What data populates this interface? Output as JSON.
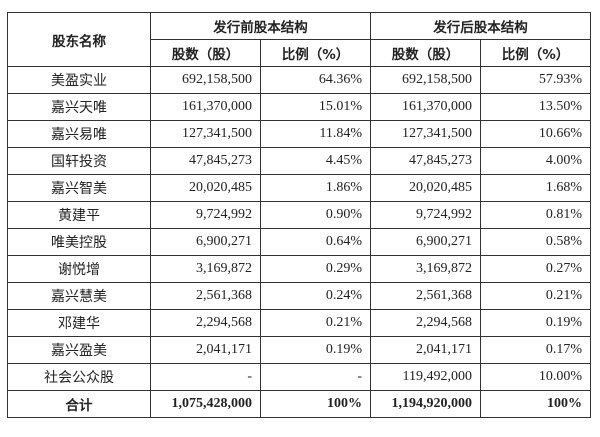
{
  "table": {
    "headers": {
      "shareholder": "股东名称",
      "before_group": "发行前股本结构",
      "after_group": "发行后股本结构",
      "shares": "股数（股）",
      "ratio": "比例（%）"
    },
    "rows": [
      {
        "name": "美盈实业",
        "before_shares": "692,158,500",
        "before_ratio": "64.36%",
        "after_shares": "692,158,500",
        "after_ratio": "57.93%"
      },
      {
        "name": "嘉兴天唯",
        "before_shares": "161,370,000",
        "before_ratio": "15.01%",
        "after_shares": "161,370,000",
        "after_ratio": "13.50%"
      },
      {
        "name": "嘉兴易唯",
        "before_shares": "127,341,500",
        "before_ratio": "11.84%",
        "after_shares": "127,341,500",
        "after_ratio": "10.66%"
      },
      {
        "name": "国轩投资",
        "before_shares": "47,845,273",
        "before_ratio": "4.45%",
        "after_shares": "47,845,273",
        "after_ratio": "4.00%"
      },
      {
        "name": "嘉兴智美",
        "before_shares": "20,020,485",
        "before_ratio": "1.86%",
        "after_shares": "20,020,485",
        "after_ratio": "1.68%"
      },
      {
        "name": "黄建平",
        "before_shares": "9,724,992",
        "before_ratio": "0.90%",
        "after_shares": "9,724,992",
        "after_ratio": "0.81%"
      },
      {
        "name": "唯美控股",
        "before_shares": "6,900,271",
        "before_ratio": "0.64%",
        "after_shares": "6,900,271",
        "after_ratio": "0.58%"
      },
      {
        "name": "谢悦增",
        "before_shares": "3,169,872",
        "before_ratio": "0.29%",
        "after_shares": "3,169,872",
        "after_ratio": "0.27%"
      },
      {
        "name": "嘉兴慧美",
        "before_shares": "2,561,368",
        "before_ratio": "0.24%",
        "after_shares": "2,561,368",
        "after_ratio": "0.21%"
      },
      {
        "name": "邓建华",
        "before_shares": "2,294,568",
        "before_ratio": "0.21%",
        "after_shares": "2,294,568",
        "after_ratio": "0.19%"
      },
      {
        "name": "嘉兴盈美",
        "before_shares": "2,041,171",
        "before_ratio": "0.19%",
        "after_shares": "2,041,171",
        "after_ratio": "0.17%"
      },
      {
        "name": "社会公众股",
        "before_shares": "-",
        "before_ratio": "-",
        "after_shares": "119,492,000",
        "after_ratio": "10.00%"
      }
    ],
    "total": {
      "name": "合计",
      "before_shares": "1,075,428,000",
      "before_ratio": "100%",
      "after_shares": "1,194,920,000",
      "after_ratio": "100%"
    }
  }
}
